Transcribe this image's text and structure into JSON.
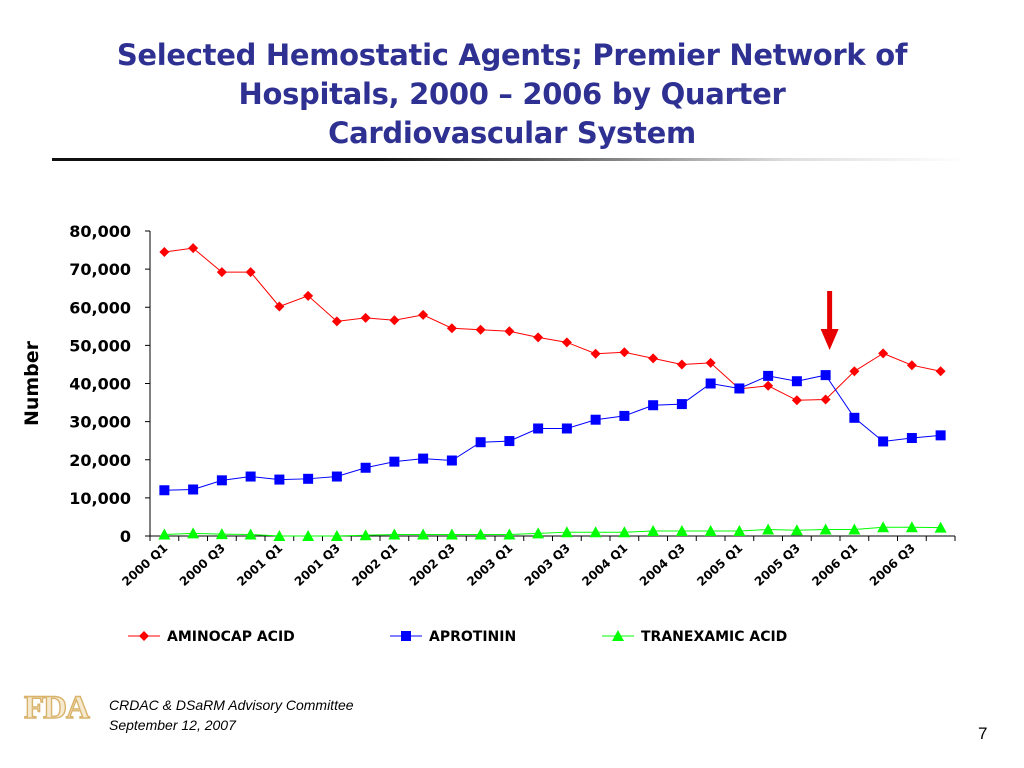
{
  "slide": {
    "title_lines": [
      "Selected Hemostatic Agents; Premier Network of",
      "Hospitals, 2000 – 2006 by Quarter",
      "Cardiovascular System"
    ],
    "footer_line1": "CRDAC & DSaRM Advisory Committee",
    "footer_line2": "September 12, 2007",
    "page_number": "7",
    "logo_text": "FDA"
  },
  "colors": {
    "title": "#2e3192",
    "aminocap": "#ff0000",
    "aprotinin": "#0000ff",
    "tranexamic": "#00ff00",
    "arrow": "#e60000"
  },
  "chart_data": {
    "type": "line",
    "title": "",
    "xlabel": "",
    "ylabel": "Number",
    "ylim": [
      0,
      80000
    ],
    "yticks": [
      "0",
      "10,000",
      "20,000",
      "30,000",
      "40,000",
      "50,000",
      "60,000",
      "70,000",
      "80,000"
    ],
    "x": [
      "2000 Q1",
      "2000 Q2",
      "2000 Q3",
      "2000 Q4",
      "2001 Q1",
      "2001 Q2",
      "2001 Q3",
      "2001 Q4",
      "2002 Q1",
      "2002 Q2",
      "2002 Q3",
      "2002 Q4",
      "2003 Q1",
      "2003 Q2",
      "2003 Q3",
      "2003 Q4",
      "2004 Q1",
      "2004 Q2",
      "2004 Q3",
      "2004 Q4",
      "2005 Q1",
      "2005 Q2",
      "2005 Q3",
      "2005 Q4",
      "2006 Q1",
      "2006 Q2",
      "2006 Q3",
      "2006 Q4"
    ],
    "xtick_labels": [
      "2000 Q1",
      "2000 Q3",
      "2001 Q1",
      "2001 Q3",
      "2002 Q1",
      "2002 Q3",
      "2003 Q1",
      "2003 Q3",
      "2004 Q1",
      "2004 Q3",
      "2005 Q1",
      "2005 Q3",
      "2006 Q1",
      "2006 Q3"
    ],
    "legend_position": "bottom",
    "grid": false,
    "series": [
      {
        "name": "AMINOCAP ACID",
        "marker": "diamond",
        "values": [
          74500,
          75500,
          69200,
          69200,
          60200,
          63000,
          56300,
          57200,
          56600,
          58000,
          54500,
          54100,
          53700,
          52100,
          50800,
          47800,
          48200,
          46600,
          45000,
          45400,
          38600,
          39400,
          35600,
          35800,
          43200,
          47900,
          44800,
          43200
        ]
      },
      {
        "name": "APROTININ",
        "marker": "square",
        "values": [
          12000,
          12200,
          14600,
          15600,
          14800,
          15000,
          15600,
          17900,
          19500,
          20300,
          19800,
          24600,
          24900,
          28200,
          28200,
          30500,
          31500,
          34300,
          34600,
          40000,
          38700,
          42000,
          40600,
          42200,
          31000,
          24800,
          25700,
          26400
        ]
      },
      {
        "name": "TRANEXAMIC ACID",
        "marker": "triangle",
        "values": [
          400,
          700,
          500,
          400,
          0,
          0,
          0,
          200,
          400,
          400,
          400,
          400,
          400,
          700,
          1000,
          1000,
          1000,
          1300,
          1300,
          1300,
          1300,
          1700,
          1500,
          1700,
          1700,
          2300,
          2300,
          2200
        ]
      }
    ],
    "annotations": [
      {
        "type": "arrow",
        "direction": "down",
        "x": "2005 Q4"
      }
    ]
  }
}
